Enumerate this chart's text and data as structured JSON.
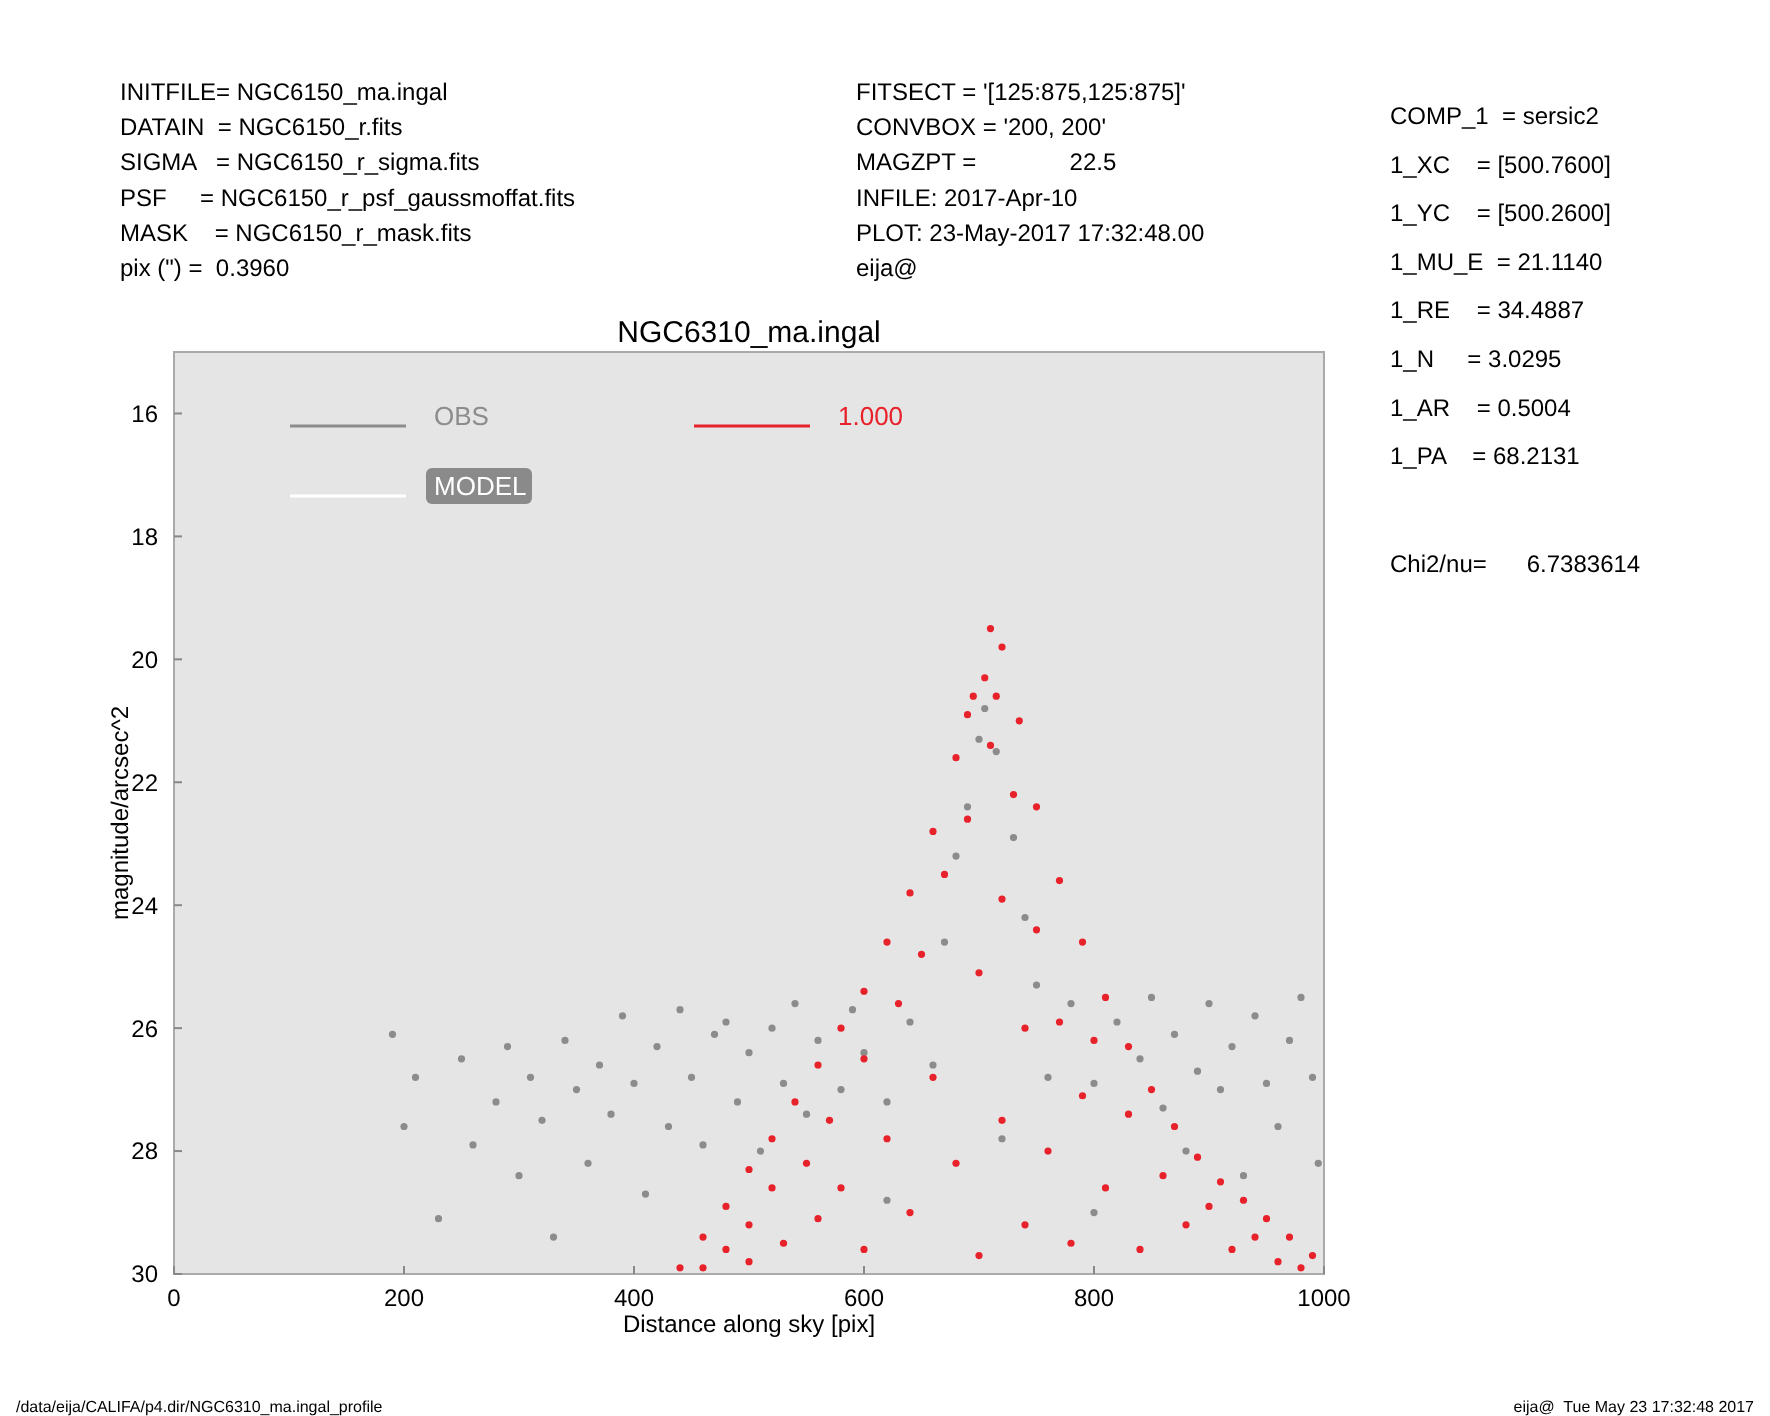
{
  "chart_data": {
    "type": "scatter",
    "title": "NGC6310_ma.ingal",
    "xlabel": "Distance along sky [pix]",
    "ylabel": "magnitude/arcsec^2",
    "xlim": [
      0,
      1000
    ],
    "xticks": [
      0,
      200,
      400,
      600,
      800,
      1000
    ],
    "ylim": [
      30,
      15
    ],
    "yticks": [
      16,
      18,
      20,
      22,
      24,
      26,
      28,
      30
    ],
    "grid": false,
    "legend": "top left",
    "marker": "circle",
    "series": [
      {
        "name": "OBS",
        "color": "#8c8c8c",
        "x": [
          190,
          200,
          210,
          230,
          250,
          260,
          280,
          290,
          300,
          310,
          320,
          330,
          340,
          350,
          360,
          370,
          380,
          390,
          400,
          410,
          420,
          430,
          440,
          450,
          460,
          470,
          480,
          490,
          500,
          510,
          520,
          530,
          540,
          550,
          560,
          580,
          590,
          600,
          620,
          640,
          660,
          670,
          680,
          690,
          700,
          705,
          715,
          730,
          740,
          750,
          760,
          780,
          800,
          820,
          840,
          850,
          860,
          870,
          880,
          890,
          900,
          910,
          920,
          930,
          940,
          950,
          960,
          970,
          980,
          990,
          995,
          620,
          720,
          800
        ],
        "values": [
          26.1,
          27.6,
          26.8,
          29.1,
          26.5,
          27.9,
          27.2,
          26.3,
          28.4,
          26.8,
          27.5,
          29.4,
          26.2,
          27.0,
          28.2,
          26.6,
          27.4,
          25.8,
          26.9,
          28.7,
          26.3,
          27.6,
          25.7,
          26.8,
          27.9,
          26.1,
          25.9,
          27.2,
          26.4,
          28.0,
          26.0,
          26.9,
          25.6,
          27.4,
          26.2,
          27.0,
          25.7,
          26.4,
          27.2,
          25.9,
          26.6,
          24.6,
          23.2,
          22.4,
          21.3,
          20.8,
          21.5,
          22.9,
          24.2,
          25.3,
          26.8,
          25.6,
          26.9,
          25.9,
          26.5,
          25.5,
          27.3,
          26.1,
          28.0,
          26.7,
          25.6,
          27.0,
          26.3,
          28.4,
          25.8,
          26.9,
          27.6,
          26.2,
          25.5,
          26.8,
          28.2,
          28.8,
          27.8,
          29.0
        ]
      },
      {
        "name": "MODEL",
        "color": "#ffffff"
      },
      {
        "name": "1.000",
        "color": "#e8222a",
        "x": [
          440,
          460,
          480,
          500,
          520,
          540,
          560,
          580,
          600,
          620,
          640,
          660,
          680,
          695,
          710,
          720,
          735,
          750,
          770,
          790,
          810,
          830,
          850,
          870,
          890,
          910,
          930,
          950,
          970,
          990,
          460,
          480,
          500,
          500,
          520,
          530,
          550,
          560,
          570,
          580,
          600,
          600,
          620,
          630,
          640,
          650,
          660,
          670,
          680,
          690,
          700,
          700,
          710,
          720,
          720,
          730,
          740,
          740,
          750,
          760,
          770,
          780,
          790,
          800,
          810,
          830,
          840,
          860,
          880,
          900,
          920,
          940,
          960,
          980,
          690,
          705,
          715
        ],
        "values": [
          29.9,
          29.4,
          28.9,
          28.3,
          27.8,
          27.2,
          26.6,
          26.0,
          25.4,
          24.6,
          23.8,
          22.8,
          21.6,
          20.6,
          19.5,
          19.8,
          21.0,
          22.4,
          23.6,
          24.6,
          25.5,
          26.3,
          27.0,
          27.6,
          28.1,
          28.5,
          28.8,
          29.1,
          29.4,
          29.7,
          29.9,
          29.6,
          29.2,
          29.8,
          28.6,
          29.5,
          28.2,
          29.1,
          27.5,
          28.6,
          26.5,
          29.6,
          27.8,
          25.6,
          29.0,
          24.8,
          26.8,
          23.5,
          28.2,
          22.6,
          25.1,
          29.7,
          21.4,
          23.9,
          27.5,
          22.2,
          26.0,
          29.2,
          24.4,
          28.0,
          25.9,
          29.5,
          27.1,
          26.2,
          28.6,
          27.4,
          29.6,
          28.4,
          29.2,
          28.9,
          29.6,
          29.4,
          29.8,
          29.9,
          20.9,
          20.3,
          20.6
        ]
      }
    ],
    "annotations": [
      "INITFILE= NGC6150_ma.ingal",
      "DATAIN  = NGC6150_r.fits",
      "SIGMA   = NGC6150_r_sigma.fits",
      "PSF     = NGC6150_r_psf_gaussmoffat.fits",
      "MASK    = NGC6150_r_mask.fits",
      "pix (\") =  0.3960",
      "FITSECT = '[125:875,125:875]'",
      "CONVBOX = '200, 200'",
      "MAGZPT =              22.5",
      "INFILE: 2017-Apr-10",
      "PLOT: 23-May-2017 17:32:48.00",
      "eija@",
      "COMP_1  = sersic2",
      "1_XC    = [500.7600]",
      "1_YC    = [500.2600]",
      "1_MU_E  = 21.1140",
      "1_RE    = 34.4887",
      "1_N     = 3.0295",
      "1_AR    = 0.5004",
      "1_PA    = 68.2131",
      "Chi2/nu=      6.7383614",
      "/data/eija/CALIFA/p4.dir/NGC6310_ma.ingal_profile",
      "eija@  Tue May 23 17:32:48 2017"
    ]
  }
}
